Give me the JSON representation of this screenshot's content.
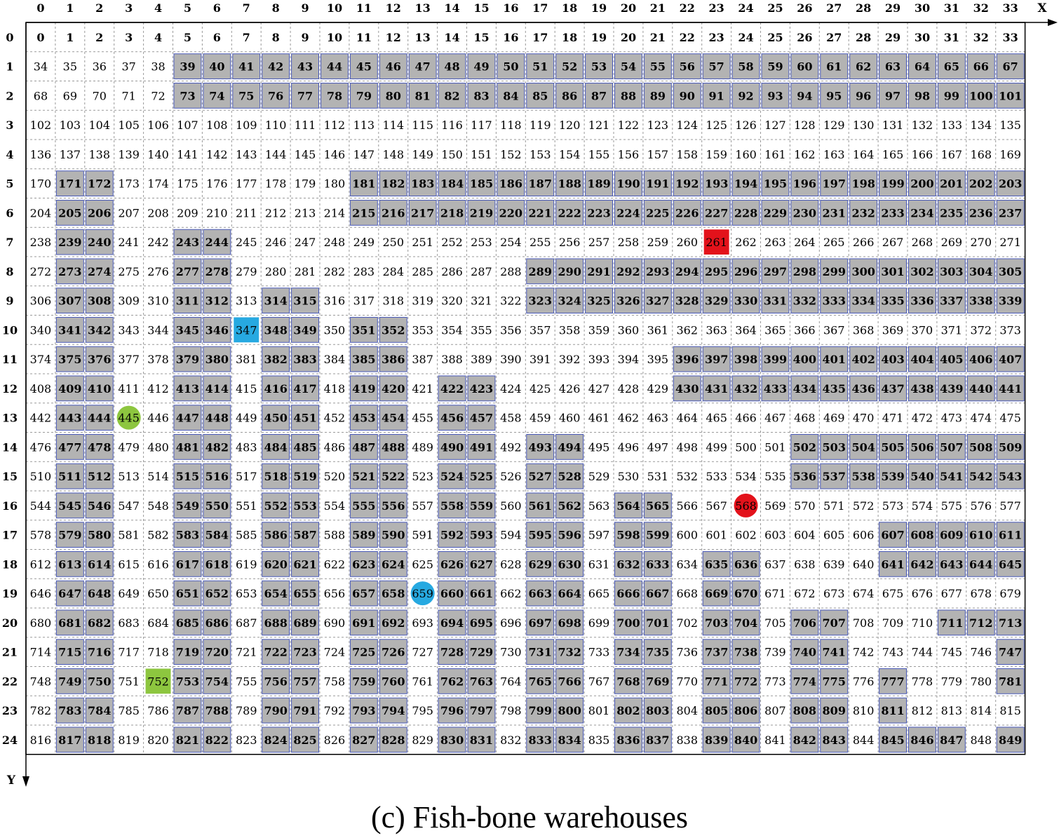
{
  "caption": "(c)  Fish-bone warehouses",
  "axes": {
    "x_label": "X",
    "y_label": "Y"
  },
  "grid": {
    "cols": 34,
    "rows": 25
  },
  "colors": {
    "shelf_fill": "#b3b3b3",
    "shelf_border": "#4a5ab8",
    "red": "#e3121b",
    "blue": "#27a9e1",
    "green": "#8dc63f",
    "grid_line": "#9a9a9a"
  },
  "shelf_cells": [
    39,
    40,
    41,
    42,
    43,
    44,
    45,
    46,
    47,
    48,
    49,
    50,
    51,
    52,
    53,
    54,
    55,
    56,
    57,
    58,
    59,
    60,
    61,
    62,
    63,
    64,
    65,
    66,
    67,
    73,
    74,
    75,
    76,
    77,
    78,
    79,
    80,
    81,
    82,
    83,
    84,
    85,
    86,
    87,
    88,
    89,
    90,
    91,
    92,
    93,
    94,
    95,
    96,
    97,
    98,
    99,
    100,
    101,
    171,
    172,
    181,
    182,
    183,
    184,
    185,
    186,
    187,
    188,
    189,
    190,
    191,
    192,
    193,
    194,
    195,
    196,
    197,
    198,
    199,
    200,
    201,
    202,
    203,
    205,
    206,
    215,
    216,
    217,
    218,
    219,
    220,
    221,
    222,
    223,
    224,
    225,
    226,
    227,
    228,
    229,
    230,
    231,
    232,
    233,
    234,
    235,
    236,
    237,
    239,
    240,
    243,
    244,
    273,
    274,
    277,
    278,
    289,
    290,
    291,
    292,
    293,
    294,
    295,
    296,
    297,
    298,
    299,
    300,
    301,
    302,
    303,
    304,
    305,
    307,
    308,
    311,
    312,
    314,
    315,
    323,
    324,
    325,
    326,
    327,
    328,
    329,
    330,
    331,
    332,
    333,
    334,
    335,
    336,
    337,
    338,
    339,
    341,
    342,
    345,
    346,
    348,
    349,
    351,
    352,
    375,
    376,
    379,
    380,
    382,
    383,
    385,
    386,
    396,
    397,
    398,
    399,
    400,
    401,
    402,
    403,
    404,
    405,
    406,
    407,
    409,
    410,
    413,
    414,
    416,
    417,
    419,
    420,
    422,
    423,
    430,
    431,
    432,
    433,
    434,
    435,
    436,
    437,
    438,
    439,
    440,
    441,
    443,
    444,
    447,
    448,
    450,
    451,
    453,
    454,
    456,
    457,
    477,
    478,
    481,
    482,
    484,
    485,
    487,
    488,
    490,
    491,
    493,
    494,
    502,
    503,
    504,
    505,
    506,
    507,
    508,
    509,
    511,
    512,
    515,
    516,
    518,
    519,
    521,
    522,
    524,
    525,
    527,
    528,
    536,
    537,
    538,
    539,
    540,
    541,
    542,
    543,
    545,
    546,
    549,
    550,
    552,
    553,
    555,
    556,
    558,
    559,
    561,
    562,
    564,
    565,
    579,
    580,
    583,
    584,
    586,
    587,
    589,
    590,
    592,
    593,
    595,
    596,
    598,
    599,
    607,
    608,
    609,
    610,
    611,
    613,
    614,
    617,
    618,
    620,
    621,
    623,
    624,
    626,
    627,
    629,
    630,
    632,
    633,
    635,
    636,
    641,
    642,
    643,
    644,
    645,
    647,
    648,
    651,
    652,
    654,
    655,
    657,
    658,
    660,
    661,
    663,
    664,
    666,
    667,
    669,
    670,
    681,
    682,
    685,
    686,
    688,
    689,
    691,
    692,
    694,
    695,
    697,
    698,
    700,
    701,
    703,
    704,
    706,
    707,
    711,
    712,
    713,
    715,
    716,
    719,
    720,
    722,
    723,
    725,
    726,
    728,
    729,
    731,
    732,
    734,
    735,
    737,
    738,
    740,
    741,
    747,
    749,
    750,
    753,
    754,
    756,
    757,
    759,
    760,
    762,
    763,
    765,
    766,
    768,
    769,
    771,
    772,
    774,
    775,
    777,
    781,
    783,
    784,
    787,
    788,
    790,
    791,
    793,
    794,
    796,
    797,
    799,
    800,
    802,
    803,
    805,
    806,
    808,
    809,
    811,
    817,
    818,
    821,
    822,
    824,
    825,
    827,
    828,
    830,
    831,
    833,
    834,
    836,
    837,
    839,
    840,
    842,
    843,
    845,
    846,
    847,
    849
  ],
  "markers": [
    {
      "cell": 261,
      "shape": "square",
      "color": "red"
    },
    {
      "cell": 568,
      "shape": "circle",
      "color": "red"
    },
    {
      "cell": 347,
      "shape": "square",
      "color": "blue"
    },
    {
      "cell": 659,
      "shape": "circle",
      "color": "blue"
    },
    {
      "cell": 445,
      "shape": "circle",
      "color": "green"
    },
    {
      "cell": 752,
      "shape": "square",
      "color": "green"
    }
  ]
}
